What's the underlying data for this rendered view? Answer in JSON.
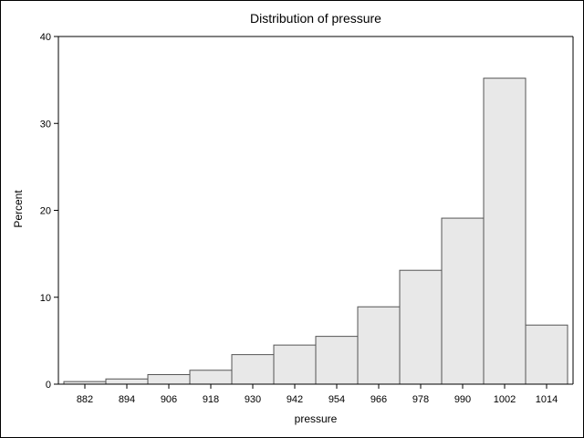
{
  "chart_data": {
    "type": "bar",
    "title": "Distribution of pressure",
    "xlabel": "pressure",
    "ylabel": "Percent",
    "categories": [
      "882",
      "894",
      "906",
      "918",
      "930",
      "942",
      "954",
      "966",
      "978",
      "990",
      "1002",
      "1014"
    ],
    "values": [
      0.3,
      0.6,
      1.1,
      1.6,
      3.4,
      4.5,
      5.5,
      8.9,
      13.1,
      19.1,
      35.2,
      6.8
    ],
    "y_ticks": [
      0,
      10,
      20,
      30,
      40
    ],
    "ylim": [
      0,
      40
    ],
    "grid": false,
    "bar_fill": "#e8e8e8",
    "bar_stroke": "#555555"
  }
}
